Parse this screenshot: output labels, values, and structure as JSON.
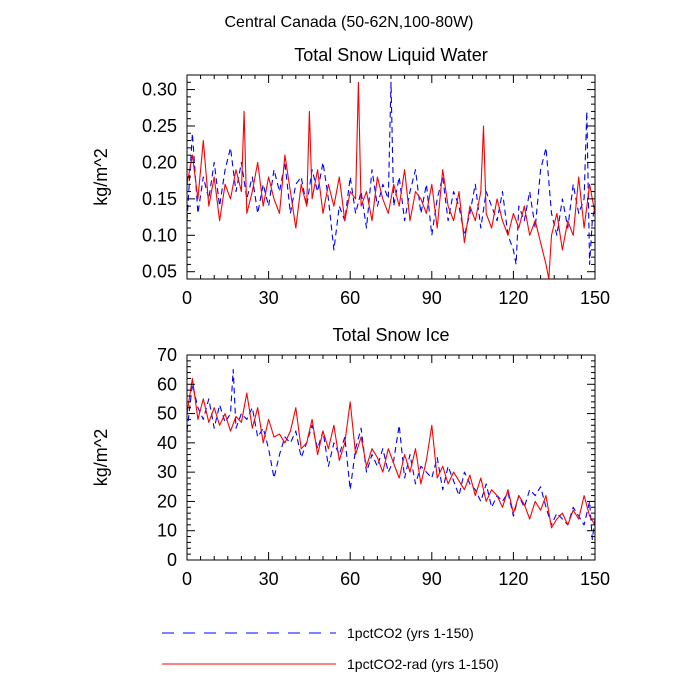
{
  "figure": {
    "title": "Central Canada (50-62N,100-80W)"
  },
  "legend": {
    "items": [
      {
        "label": "1pctCO2 (yrs 1-150)",
        "color": "#0000ff",
        "dash": "dashed"
      },
      {
        "label": "1pctCO2-rad (yrs 1-150)",
        "color": "#ff0000",
        "dash": "solid"
      }
    ]
  },
  "chart_data": [
    {
      "type": "line",
      "title": "Total Snow Liquid Water",
      "xlabel": "",
      "ylabel": "kg/m^2",
      "xlim": [
        0,
        150
      ],
      "ylim": [
        0.04,
        0.32
      ],
      "xticks": [
        0,
        30,
        60,
        90,
        120,
        150
      ],
      "yticks": [
        0.05,
        0.1,
        0.15,
        0.2,
        0.25,
        0.3
      ],
      "ytick_labels": [
        "0.05",
        "0.10",
        "0.15",
        "0.20",
        "0.25",
        "0.30"
      ],
      "grid": false,
      "series": [
        {
          "name": "1pctCO2 (yrs 1-150)",
          "color": "#0000ff",
          "dash": "dashed",
          "x": [
            0,
            2,
            4,
            6,
            8,
            10,
            12,
            14,
            16,
            18,
            20,
            22,
            24,
            26,
            28,
            30,
            32,
            34,
            36,
            38,
            40,
            42,
            44,
            46,
            48,
            50,
            52,
            54,
            56,
            58,
            60,
            62,
            64,
            66,
            68,
            70,
            72,
            74,
            75,
            76,
            78,
            80,
            82,
            84,
            86,
            88,
            90,
            92,
            94,
            96,
            98,
            100,
            102,
            104,
            106,
            108,
            110,
            112,
            114,
            116,
            118,
            120,
            121,
            122,
            124,
            126,
            128,
            130,
            132,
            134,
            136,
            138,
            140,
            142,
            144,
            146,
            147,
            148,
            149,
            150
          ],
          "y": [
            0.12,
            0.24,
            0.13,
            0.18,
            0.15,
            0.2,
            0.14,
            0.19,
            0.22,
            0.16,
            0.2,
            0.15,
            0.18,
            0.13,
            0.17,
            0.14,
            0.19,
            0.16,
            0.2,
            0.13,
            0.17,
            0.18,
            0.14,
            0.19,
            0.16,
            0.2,
            0.15,
            0.08,
            0.14,
            0.12,
            0.18,
            0.13,
            0.16,
            0.11,
            0.19,
            0.14,
            0.17,
            0.15,
            0.31,
            0.14,
            0.18,
            0.12,
            0.16,
            0.19,
            0.13,
            0.17,
            0.1,
            0.15,
            0.18,
            0.12,
            0.16,
            0.14,
            0.1,
            0.13,
            0.17,
            0.11,
            0.16,
            0.14,
            0.12,
            0.16,
            0.1,
            0.08,
            0.06,
            0.14,
            0.12,
            0.16,
            0.11,
            0.19,
            0.22,
            0.13,
            0.1,
            0.15,
            0.11,
            0.17,
            0.13,
            0.15,
            0.27,
            0.06,
            0.12,
            0.14
          ]
        },
        {
          "name": "1pctCO2-rad (yrs 1-150)",
          "color": "#ff0000",
          "dash": "solid",
          "x": [
            0,
            2,
            4,
            6,
            8,
            10,
            12,
            14,
            16,
            18,
            20,
            21,
            22,
            24,
            26,
            28,
            30,
            32,
            34,
            36,
            38,
            40,
            42,
            44,
            45,
            46,
            48,
            50,
            52,
            54,
            56,
            58,
            60,
            62,
            63,
            64,
            66,
            68,
            70,
            72,
            74,
            76,
            78,
            80,
            82,
            84,
            86,
            88,
            90,
            92,
            94,
            96,
            98,
            100,
            102,
            104,
            106,
            108,
            109,
            110,
            112,
            114,
            116,
            118,
            120,
            122,
            124,
            126,
            128,
            130,
            132,
            133,
            134,
            136,
            138,
            140,
            142,
            144,
            146,
            148,
            150
          ],
          "y": [
            0.17,
            0.21,
            0.15,
            0.23,
            0.14,
            0.18,
            0.12,
            0.17,
            0.15,
            0.19,
            0.16,
            0.27,
            0.13,
            0.16,
            0.2,
            0.14,
            0.18,
            0.15,
            0.13,
            0.21,
            0.16,
            0.11,
            0.17,
            0.14,
            0.27,
            0.15,
            0.19,
            0.13,
            0.17,
            0.14,
            0.18,
            0.12,
            0.16,
            0.15,
            0.31,
            0.14,
            0.16,
            0.12,
            0.18,
            0.15,
            0.13,
            0.17,
            0.14,
            0.19,
            0.12,
            0.16,
            0.15,
            0.13,
            0.17,
            0.11,
            0.19,
            0.14,
            0.12,
            0.16,
            0.09,
            0.14,
            0.12,
            0.16,
            0.25,
            0.13,
            0.11,
            0.15,
            0.12,
            0.1,
            0.13,
            0.11,
            0.14,
            0.1,
            0.12,
            0.09,
            0.06,
            0.04,
            0.1,
            0.13,
            0.08,
            0.12,
            0.1,
            0.18,
            0.11,
            0.17,
            0.13
          ]
        }
      ]
    },
    {
      "type": "line",
      "title": "Total Snow Ice",
      "xlabel": "",
      "ylabel": "kg/m^2",
      "xlim": [
        0,
        150
      ],
      "ylim": [
        0,
        70
      ],
      "xticks": [
        0,
        30,
        60,
        90,
        120,
        150
      ],
      "yticks": [
        0,
        10,
        20,
        30,
        40,
        50,
        60,
        70
      ],
      "ytick_labels": [
        "0",
        "10",
        "20",
        "30",
        "40",
        "50",
        "60",
        "70"
      ],
      "grid": false,
      "series": [
        {
          "name": "1pctCO2 (yrs 1-150)",
          "color": "#0000ff",
          "dash": "dashed",
          "x": [
            0,
            2,
            4,
            6,
            8,
            10,
            12,
            14,
            16,
            17,
            18,
            20,
            22,
            24,
            26,
            28,
            30,
            32,
            34,
            36,
            38,
            40,
            42,
            44,
            46,
            48,
            50,
            52,
            54,
            56,
            58,
            60,
            62,
            64,
            66,
            68,
            70,
            72,
            74,
            76,
            78,
            80,
            82,
            84,
            86,
            88,
            90,
            92,
            94,
            96,
            98,
            100,
            102,
            104,
            106,
            108,
            110,
            112,
            114,
            116,
            118,
            120,
            122,
            124,
            126,
            128,
            130,
            132,
            134,
            136,
            138,
            140,
            142,
            144,
            146,
            148,
            149,
            150
          ],
          "y": [
            44,
            60,
            52,
            48,
            55,
            45,
            53,
            47,
            50,
            65,
            45,
            50,
            48,
            52,
            42,
            45,
            38,
            28,
            36,
            42,
            40,
            44,
            35,
            40,
            46,
            38,
            44,
            32,
            40,
            36,
            42,
            24,
            38,
            45,
            30,
            36,
            32,
            38,
            30,
            34,
            46,
            28,
            36,
            26,
            32,
            30,
            28,
            35,
            24,
            32,
            27,
            22,
            30,
            26,
            24,
            20,
            26,
            18,
            22,
            20,
            23,
            15,
            22,
            18,
            24,
            22,
            25,
            18,
            12,
            16,
            14,
            12,
            18,
            15,
            12,
            20,
            7,
            14
          ]
        },
        {
          "name": "1pctCO2-rad (yrs 1-150)",
          "color": "#ff0000",
          "dash": "solid",
          "x": [
            0,
            2,
            4,
            6,
            8,
            10,
            12,
            14,
            16,
            18,
            20,
            22,
            24,
            26,
            28,
            30,
            32,
            34,
            36,
            38,
            40,
            42,
            44,
            46,
            48,
            50,
            52,
            54,
            56,
            58,
            60,
            62,
            64,
            66,
            68,
            70,
            72,
            74,
            76,
            78,
            80,
            82,
            84,
            86,
            88,
            90,
            92,
            94,
            96,
            98,
            100,
            102,
            104,
            106,
            108,
            110,
            112,
            114,
            116,
            118,
            120,
            122,
            124,
            126,
            128,
            130,
            132,
            134,
            136,
            138,
            140,
            142,
            144,
            146,
            148,
            150
          ],
          "y": [
            50,
            62,
            48,
            55,
            47,
            52,
            46,
            50,
            44,
            49,
            47,
            57,
            45,
            52,
            40,
            48,
            42,
            43,
            40,
            44,
            52,
            38,
            40,
            48,
            36,
            44,
            38,
            46,
            34,
            40,
            54,
            36,
            42,
            32,
            38,
            35,
            30,
            38,
            33,
            28,
            36,
            30,
            38,
            26,
            34,
            46,
            28,
            32,
            26,
            30,
            27,
            24,
            29,
            22,
            28,
            20,
            24,
            22,
            18,
            24,
            16,
            22,
            19,
            14,
            20,
            17,
            22,
            11,
            14,
            16,
            12,
            17,
            14,
            22,
            15,
            12
          ]
        }
      ]
    }
  ]
}
